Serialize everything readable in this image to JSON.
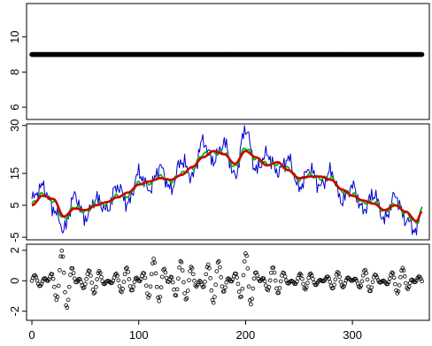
{
  "chart_data": [
    {
      "type": "scatter",
      "panel": "top",
      "xlim": [
        -5,
        372
      ],
      "ylim": [
        5.3,
        11.9
      ],
      "yticks": [
        6,
        8,
        10
      ],
      "ytick_labels": [
        "6",
        "8",
        "10"
      ],
      "grid": false,
      "series": [
        {
          "constant_y": 9.0,
          "x_range": [
            0,
            365
          ],
          "color": "#000000",
          "marker": "filled-circle"
        }
      ]
    },
    {
      "type": "line",
      "panel": "middle",
      "xlim": [
        -5,
        372
      ],
      "ylim": [
        -5.8,
        30.5
      ],
      "yticks": [
        -5,
        5,
        15,
        30
      ],
      "ytick_labels": [
        "-5",
        "5",
        "15",
        "30"
      ],
      "grid": false,
      "x": [
        0,
        10,
        20,
        30,
        40,
        50,
        60,
        70,
        80,
        90,
        100,
        110,
        120,
        130,
        140,
        150,
        160,
        170,
        180,
        190,
        200,
        210,
        220,
        230,
        240,
        250,
        260,
        270,
        280,
        290,
        300,
        310,
        320,
        330,
        340,
        350,
        360,
        365
      ],
      "smooth_red": [
        5.0,
        8.0,
        7.0,
        1.5,
        4.0,
        3.5,
        5.0,
        6.0,
        7.5,
        9.0,
        11.5,
        12.5,
        13.5,
        13.0,
        14.5,
        17.0,
        20.0,
        22.0,
        21.0,
        18.0,
        22.0,
        20.0,
        17.5,
        18.5,
        16.0,
        13.5,
        14.0,
        14.0,
        13.0,
        10.0,
        8.0,
        6.5,
        5.5,
        3.5,
        5.0,
        3.0,
        0.0,
        3.0
      ],
      "smooth_green": [
        5.5,
        8.5,
        6.5,
        0.8,
        4.5,
        3.0,
        5.5,
        5.5,
        8.0,
        8.0,
        12.0,
        12.0,
        14.0,
        12.5,
        15.0,
        16.5,
        21.0,
        21.5,
        21.5,
        17.0,
        23.0,
        19.5,
        18.0,
        18.0,
        16.5,
        13.0,
        14.5,
        13.5,
        13.5,
        9.5,
        8.5,
        6.0,
        6.0,
        3.0,
        5.5,
        2.5,
        -0.5,
        3.5
      ],
      "raw_blue": [
        7.0,
        11.0,
        4.0,
        -2.5,
        8.0,
        1.0,
        7.0,
        3.5,
        11.0,
        5.5,
        15.0,
        10.0,
        17.0,
        10.0,
        19.0,
        14.0,
        25.0,
        19.0,
        24.5,
        14.0,
        29.0,
        16.0,
        21.0,
        15.5,
        19.5,
        10.5,
        16.5,
        11.0,
        15.5,
        6.5,
        11.0,
        3.5,
        8.5,
        0.5,
        8.0,
        0.5,
        -3.0,
        4.5
      ],
      "series": [
        {
          "name": "",
          "key": "raw_blue",
          "color": "#0000cc"
        },
        {
          "name": "",
          "key": "smooth_green",
          "color": "#00bb00"
        },
        {
          "name": "",
          "key": "smooth_red",
          "color": "#cc0000"
        }
      ]
    },
    {
      "type": "scatter",
      "panel": "bottom",
      "xlim": [
        -5,
        372
      ],
      "ylim": [
        -2.6,
        2.4
      ],
      "yticks": [
        -2,
        0,
        2
      ],
      "ytick_labels": [
        "-2",
        "0",
        "2"
      ],
      "xticks": [
        0,
        100,
        200,
        300
      ],
      "xtick_labels": [
        "0",
        "100",
        "200",
        "300"
      ],
      "grid": false,
      "marker": "open-circle",
      "amplitude_profile": [
        0.3,
        0.6,
        1.3,
        2.2,
        1.4,
        0.7,
        0.9,
        0.5,
        0.7,
        1.0,
        1.1,
        1.4,
        1.6,
        1.8,
        1.3,
        1.2,
        1.4,
        1.5,
        1.1,
        1.0,
        2.1,
        0.9,
        1.0,
        0.8,
        0.6,
        0.6,
        0.5,
        0.5,
        0.6,
        0.5,
        0.6,
        0.8,
        0.5,
        0.6,
        0.9,
        1.1,
        0.3
      ]
    }
  ]
}
